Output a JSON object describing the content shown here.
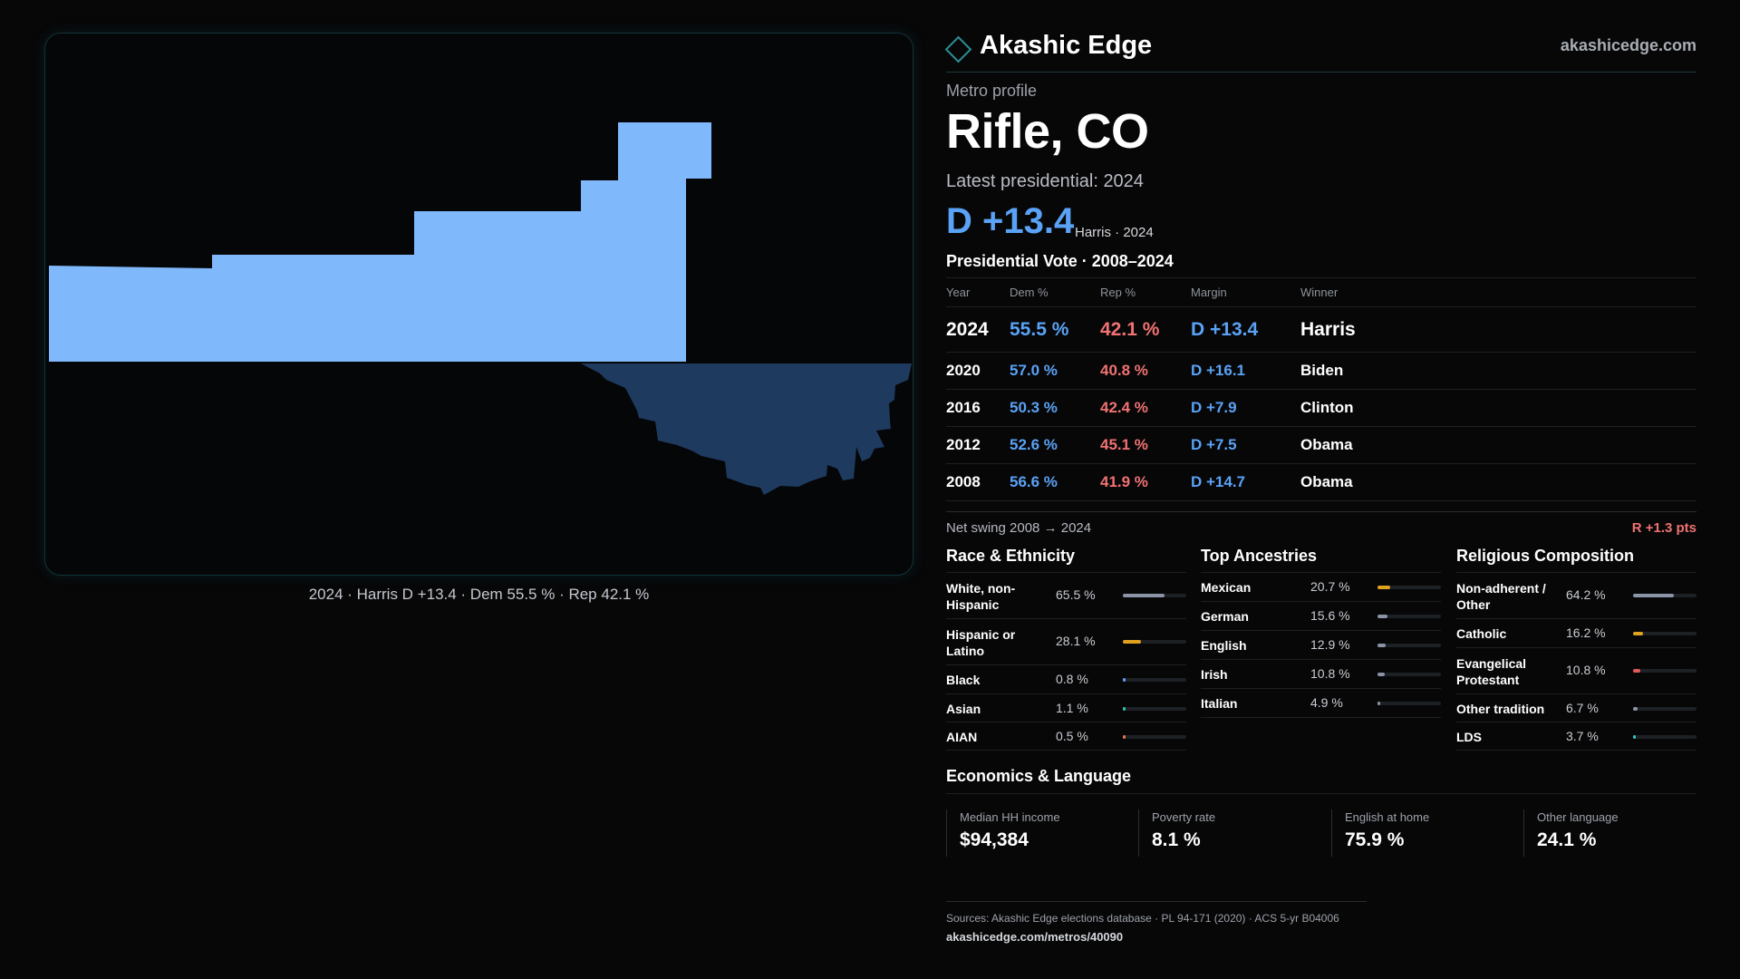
{
  "brand": {
    "name": "Akashic Edge",
    "url": "akashicedge.com",
    "icon": "diamond-outline-icon",
    "accent": "#2a8f93"
  },
  "eyebrow": "Metro profile",
  "title": "Rifle, CO",
  "latest_label": "Latest presidential: 2024",
  "headline": {
    "margin": "D +13.4",
    "sub": "Harris · 2024"
  },
  "colors": {
    "dem": "#5aa2f5",
    "rep": "#f07272",
    "map_primary": "#80b8fc",
    "map_secondary": "#1e3a5f"
  },
  "map": {
    "caption": "2024 · Harris D +13.4 · Dem 55.5 % · Rep 42.1 %"
  },
  "vote": {
    "title": "Presidential Vote · 2008–2024",
    "headers": {
      "year": "Year",
      "dem": "Dem %",
      "rep": "Rep %",
      "margin": "Margin",
      "winner": "Winner"
    },
    "rows": [
      {
        "year": "2024",
        "dem": "55.5 %",
        "rep": "42.1 %",
        "margin": "D +13.4",
        "winner": "Harris"
      },
      {
        "year": "2020",
        "dem": "57.0 %",
        "rep": "40.8 %",
        "margin": "D +16.1",
        "winner": "Biden"
      },
      {
        "year": "2016",
        "dem": "50.3 %",
        "rep": "42.4 %",
        "margin": "D +7.9",
        "winner": "Clinton"
      },
      {
        "year": "2012",
        "dem": "52.6 %",
        "rep": "45.1 %",
        "margin": "D +7.5",
        "winner": "Obama"
      },
      {
        "year": "2008",
        "dem": "56.6 %",
        "rep": "41.9 %",
        "margin": "D +14.7",
        "winner": "Obama"
      }
    ]
  },
  "swing": {
    "label": "Net swing 2008 → 2024",
    "value": "R +1.3 pts"
  },
  "race": {
    "title": "Race & Ethnicity",
    "items": [
      {
        "label": "White, non-Hispanic",
        "value": "65.5 %",
        "pct": 65.5,
        "color": "#8a94a6"
      },
      {
        "label": "Hispanic or Latino",
        "value": "28.1 %",
        "pct": 28.1,
        "color": "#e0a020"
      },
      {
        "label": "Black",
        "value": "0.8 %",
        "pct": 0.8,
        "color": "#5aa2f5"
      },
      {
        "label": "Asian",
        "value": "1.1 %",
        "pct": 1.1,
        "color": "#2ec4a6"
      },
      {
        "label": "AIAN",
        "value": "0.5 %",
        "pct": 0.5,
        "color": "#e07850"
      }
    ]
  },
  "ancestry": {
    "title": "Top Ancestries",
    "items": [
      {
        "label": "Mexican",
        "value": "20.7 %",
        "pct": 20.7,
        "color": "#e0a020"
      },
      {
        "label": "German",
        "value": "15.6 %",
        "pct": 15.6,
        "color": "#8a94a6"
      },
      {
        "label": "English",
        "value": "12.9 %",
        "pct": 12.9,
        "color": "#8a94a6"
      },
      {
        "label": "Irish",
        "value": "10.8 %",
        "pct": 10.8,
        "color": "#8a94a6"
      },
      {
        "label": "Italian",
        "value": "4.9 %",
        "pct": 4.9,
        "color": "#8a94a6"
      }
    ]
  },
  "religion": {
    "title": "Religious Composition",
    "items": [
      {
        "label": "Non-adherent / Other",
        "value": "64.2 %",
        "pct": 64.2,
        "color": "#8a94a6"
      },
      {
        "label": "Catholic",
        "value": "16.2 %",
        "pct": 16.2,
        "color": "#e0a020"
      },
      {
        "label": "Evangelical Protestant",
        "value": "10.8 %",
        "pct": 10.8,
        "color": "#e05858"
      },
      {
        "label": "Other tradition",
        "value": "6.7 %",
        "pct": 6.7,
        "color": "#8a94a6"
      },
      {
        "label": "LDS",
        "value": "3.7 %",
        "pct": 3.7,
        "color": "#2ec4c4"
      }
    ]
  },
  "economics": {
    "title": "Economics & Language",
    "items": [
      {
        "label": "Median HH income",
        "value": "$94,384"
      },
      {
        "label": "Poverty rate",
        "value": "8.1 %"
      },
      {
        "label": "English at home",
        "value": "75.9 %"
      },
      {
        "label": "Other language",
        "value": "24.1 %"
      }
    ]
  },
  "footer": {
    "sources": "Sources: Akashic Edge elections database · PL 94-171 (2020) · ACS 5-yr B04006",
    "url": "akashicedge.com/metros/40090"
  }
}
